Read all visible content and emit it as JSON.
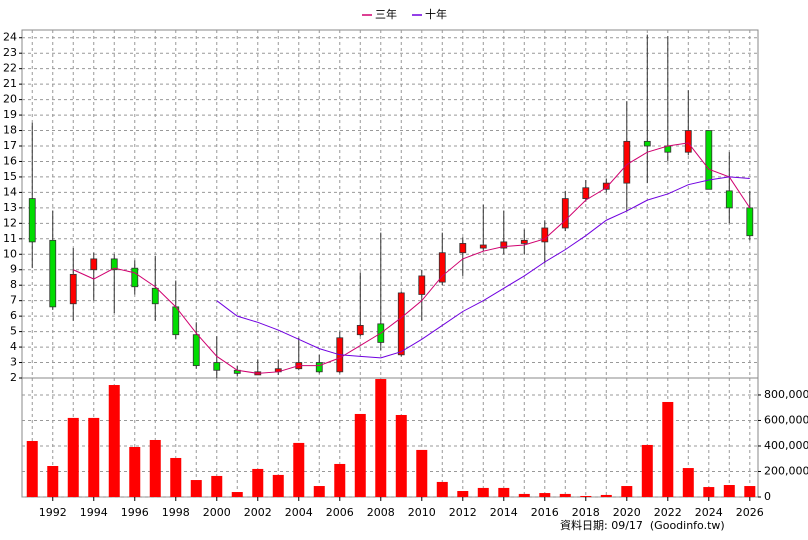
{
  "chart_data": {
    "type": "candlestick",
    "legend_position": "top",
    "grid": true,
    "up_color": "#ff0000",
    "down_color": "#00dd00",
    "volume_color": "#ff0000",
    "x": [
      1991,
      1992,
      1993,
      1994,
      1995,
      1996,
      1997,
      1998,
      1999,
      2000,
      2001,
      2002,
      2003,
      2004,
      2005,
      2006,
      2007,
      2008,
      2009,
      2010,
      2011,
      2012,
      2013,
      2014,
      2015,
      2016,
      2017,
      2018,
      2019,
      2020,
      2021,
      2022,
      2023,
      2024,
      2025,
      2026
    ],
    "open": [
      13.6,
      10.9,
      6.8,
      9.0,
      9.7,
      9.1,
      7.8,
      6.6,
      4.8,
      3.0,
      2.5,
      2.2,
      2.4,
      2.6,
      3.0,
      2.4,
      4.8,
      5.5,
      3.5,
      7.4,
      8.2,
      10.1,
      10.4,
      10.4,
      10.7,
      10.8,
      11.7,
      13.6,
      14.2,
      14.6,
      17.3,
      17.0,
      16.6,
      18.0,
      14.1,
      13.0
    ],
    "high": [
      18.5,
      12.8,
      10.4,
      10.1,
      10.0,
      9.6,
      9.9,
      8.3,
      5.6,
      4.7,
      2.8,
      3.2,
      3.2,
      4.6,
      3.5,
      5.0,
      8.8,
      11.4,
      7.6,
      9.0,
      11.4,
      11.1,
      13.2,
      12.8,
      11.6,
      12.2,
      14.1,
      14.8,
      14.9,
      19.9,
      24.2,
      24.1,
      20.6,
      18.0,
      16.6,
      14.1
    ],
    "low": [
      9.1,
      6.4,
      5.7,
      7.0,
      6.2,
      7.4,
      5.7,
      4.5,
      2.6,
      2.0,
      2.1,
      2.2,
      2.2,
      2.5,
      2.3,
      2.3,
      4.7,
      3.8,
      3.4,
      5.7,
      8.0,
      8.6,
      10.2,
      10.0,
      10.0,
      9.4,
      11.5,
      13.4,
      14.0,
      12.8,
      14.6,
      16.0,
      16.4,
      14.2,
      12.0,
      10.9
    ],
    "close": [
      10.8,
      6.6,
      8.7,
      9.7,
      9.0,
      7.9,
      6.8,
      4.8,
      2.8,
      2.5,
      2.3,
      2.4,
      2.6,
      3.0,
      2.4,
      4.6,
      5.4,
      4.3,
      7.5,
      8.6,
      10.1,
      10.7,
      10.6,
      10.8,
      10.9,
      11.7,
      13.6,
      14.3,
      14.6,
      17.3,
      17.0,
      16.6,
      18.0,
      14.2,
      13.0,
      11.2
    ],
    "series": [
      {
        "name": "三年",
        "color": "#d0006f",
        "values": [
          null,
          null,
          9.0,
          8.4,
          9.1,
          8.8,
          7.9,
          6.6,
          4.9,
          3.4,
          2.5,
          2.3,
          2.4,
          2.8,
          2.8,
          3.3,
          4.1,
          4.9,
          5.9,
          7.0,
          8.6,
          9.7,
          10.2,
          10.5,
          10.6,
          11.0,
          12.2,
          13.5,
          14.3,
          15.8,
          16.6,
          17.0,
          17.2,
          15.5,
          15.0,
          13.0
        ]
      },
      {
        "name": "十年",
        "color": "#7000e0",
        "values": [
          null,
          null,
          null,
          null,
          null,
          null,
          null,
          null,
          null,
          7.0,
          6.0,
          5.6,
          5.1,
          4.5,
          3.9,
          3.5,
          3.4,
          3.3,
          3.7,
          4.5,
          5.4,
          6.3,
          7.0,
          7.8,
          8.6,
          9.5,
          10.3,
          11.2,
          12.2,
          12.8,
          13.5,
          13.9,
          14.5,
          14.8,
          15.0,
          14.9
        ]
      }
    ],
    "volume": [
      439000,
      243000,
      620000,
      620000,
      878000,
      392000,
      447000,
      306000,
      133000,
      165000,
      39000,
      220000,
      173000,
      424000,
      86000,
      259000,
      651000,
      925000,
      643000,
      369000,
      118000,
      47000,
      71000,
      71000,
      24000,
      31000,
      24000,
      8000,
      16000,
      86000,
      408000,
      745000,
      227000,
      78000,
      94000,
      86000
    ],
    "xlim": [
      1990.5,
      2026.4
    ],
    "xticks": [
      1992,
      1994,
      1996,
      1998,
      2000,
      2002,
      2004,
      2006,
      2008,
      2010,
      2012,
      2014,
      2016,
      2018,
      2020,
      2022,
      2024,
      2026
    ],
    "ylim": [
      2,
      24.5
    ],
    "yticks": [
      2,
      3,
      4,
      5,
      6,
      7,
      8,
      9,
      10,
      11,
      12,
      13,
      14,
      15,
      16,
      17,
      18,
      19,
      20,
      21,
      22,
      23,
      24
    ],
    "y2lim": [
      0,
      933000
    ],
    "y2ticks": [
      0,
      {
        "value": 200000,
        "label": "200,000"
      },
      {
        "value": 400000,
        "label": "400,000"
      },
      {
        "value": 600000,
        "label": "600,000"
      },
      {
        "value": 800000,
        "label": "800,000"
      }
    ],
    "footer": "資料日期: 09/17  (Goodinfo.tw)"
  }
}
